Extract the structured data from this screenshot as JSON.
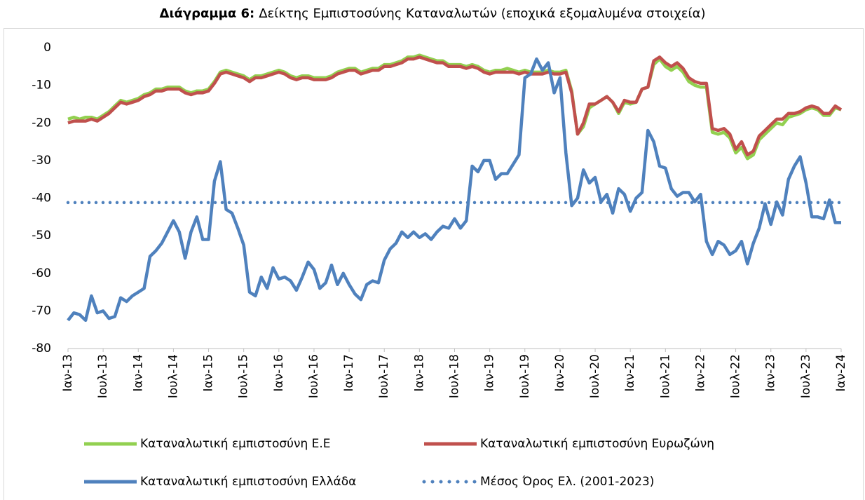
{
  "chart_data": {
    "type": "line",
    "title_label": "Διάγραμμα 6:",
    "title": "Δείκτης Εμπιστοσύνης Καταναλωτών (εποχικά εξομαλυμένα στοιχεία)",
    "categories": [
      "Ιαν-13",
      null,
      null,
      null,
      null,
      null,
      "Ιουλ-13",
      null,
      null,
      null,
      null,
      null,
      "Ιαν-14",
      null,
      null,
      null,
      null,
      null,
      "Ιουλ-14",
      null,
      null,
      null,
      null,
      null,
      "Ιαν-15",
      null,
      null,
      null,
      null,
      null,
      "Ιουλ-15",
      null,
      null,
      null,
      null,
      null,
      "Ιαν-16",
      null,
      null,
      null,
      null,
      null,
      "Ιουλ-16",
      null,
      null,
      null,
      null,
      null,
      "Ιαν-17",
      null,
      null,
      null,
      null,
      null,
      "Ιουλ-17",
      null,
      null,
      null,
      null,
      null,
      "Ιαν-18",
      null,
      null,
      null,
      null,
      null,
      "Ιουλ-18",
      null,
      null,
      null,
      null,
      null,
      "Ιαν-19",
      null,
      null,
      null,
      null,
      null,
      "Ιουλ-19",
      null,
      null,
      null,
      null,
      null,
      "Ιαν-20",
      null,
      null,
      null,
      null,
      null,
      "Ιουλ-20",
      null,
      null,
      null,
      null,
      null,
      "Ιαν-21",
      null,
      null,
      null,
      null,
      null,
      "Ιουλ-21",
      null,
      null,
      null,
      null,
      null,
      "Ιαν-22",
      null,
      null,
      null,
      null,
      null,
      "Ιουλ-22",
      null,
      null,
      null,
      null,
      null,
      "Ιαν-23",
      null,
      null,
      null,
      null,
      null,
      "Ιουλ-23",
      null,
      null,
      null,
      null,
      null,
      "Ιαν-24"
    ],
    "series": [
      {
        "name": "Καταναλωτική εμπιστοσύνη Ε.Ε",
        "color": "#92d050",
        "style": "solid",
        "values": [
          -19,
          -18.5,
          -19,
          -18.5,
          -18.5,
          -19,
          -18,
          -17,
          -15.5,
          -14,
          -14.5,
          -14,
          -13.5,
          -12.5,
          -12,
          -11,
          -11,
          -10.5,
          -10.5,
          -10.5,
          -11.5,
          -12,
          -11.5,
          -11.5,
          -11,
          -9,
          -6.5,
          -6,
          -6.5,
          -7,
          -7.5,
          -8.5,
          -7.5,
          -7.5,
          -7,
          -6.5,
          -6,
          -6.5,
          -7.5,
          -8,
          -7.5,
          -7.5,
          -8,
          -8,
          -8,
          -7.5,
          -6.5,
          -6,
          -5.5,
          -5.5,
          -6.5,
          -6,
          -5.5,
          -5.5,
          -4.5,
          -4.5,
          -4,
          -3.5,
          -2.5,
          -2.5,
          -2,
          -2.5,
          -3,
          -3.5,
          -3.5,
          -4.5,
          -4.5,
          -4.5,
          -5,
          -4.5,
          -5,
          -6,
          -6.5,
          -6,
          -6,
          -5.5,
          -6,
          -6.5,
          -6,
          -6.5,
          -6.5,
          -6.5,
          -6,
          -6.5,
          -6.5,
          -6,
          -11.5,
          -23,
          -21,
          -16,
          -15,
          -14,
          -13,
          -14.5,
          -17.5,
          -14.5,
          -15,
          -14.5,
          -11,
          -10.5,
          -4.5,
          -3,
          -5,
          -6,
          -5,
          -6.5,
          -9,
          -10,
          -10.5,
          -10.5,
          -22.5,
          -23,
          -22.5,
          -24,
          -28,
          -26.5,
          -29.5,
          -28.5,
          -24.5,
          -23,
          -21.5,
          -20,
          -20.5,
          -18.5,
          -18,
          -17.5,
          -16.5,
          -16,
          -16.5,
          -18,
          -18,
          -16,
          -16.5
        ]
      },
      {
        "name": "Καταναλωτική εμπιστοσύνη Ευρωζώνη",
        "color": "#c0504d",
        "style": "solid",
        "values": [
          -20,
          -19.5,
          -19.5,
          -19.5,
          -19,
          -19.5,
          -18.5,
          -17.5,
          -16,
          -14.5,
          -15,
          -14.5,
          -14,
          -13,
          -12.5,
          -11.5,
          -11.5,
          -11,
          -11,
          -11,
          -12,
          -12.5,
          -12,
          -12,
          -11.5,
          -9.5,
          -7,
          -6.5,
          -7,
          -7.5,
          -8,
          -9,
          -8,
          -8,
          -7.5,
          -7,
          -6.5,
          -7,
          -8,
          -8.5,
          -8,
          -8,
          -8.5,
          -8.5,
          -8.5,
          -8,
          -7,
          -6.5,
          -6,
          -6,
          -7,
          -6.5,
          -6,
          -6,
          -5,
          -5,
          -4.5,
          -4,
          -3,
          -3,
          -2.5,
          -3,
          -3.5,
          -4,
          -4,
          -5,
          -5,
          -5,
          -5.5,
          -5,
          -5.5,
          -6.5,
          -7,
          -6.5,
          -6.5,
          -6.5,
          -6.5,
          -7,
          -6.5,
          -7,
          -7,
          -7,
          -6.5,
          -7,
          -7,
          -6.5,
          -12,
          -23,
          -20,
          -15,
          -15,
          -14,
          -13,
          -14.5,
          -17,
          -14,
          -14.5,
          -14.5,
          -11,
          -10.5,
          -3.5,
          -2.5,
          -4,
          -5,
          -4,
          -5.5,
          -8,
          -9,
          -9.5,
          -9.5,
          -21.5,
          -22,
          -21.5,
          -23,
          -27,
          -25,
          -28.5,
          -27.5,
          -23.5,
          -22,
          -20.5,
          -19,
          -19,
          -17.5,
          -17.5,
          -17,
          -16,
          -15.5,
          -16,
          -17.5,
          -17.5,
          -15.5,
          -16.5
        ]
      },
      {
        "name": "Καταναλωτική εμπιστοσύνη Ελλάδα",
        "color": "#4f81bd",
        "style": "solid",
        "values": [
          -72.5,
          -70.5,
          -71,
          -72.5,
          -66,
          -70.5,
          -70,
          -72,
          -71.5,
          -66.5,
          -67.5,
          -66,
          -65,
          -64,
          -55.5,
          -54,
          -52,
          -49,
          -46,
          -49,
          -56,
          -49,
          -45,
          -51,
          -51,
          -35.5,
          -30.3,
          -43,
          -44,
          -48,
          -52.5,
          -65,
          -66,
          -61,
          -64,
          -58.5,
          -61.5,
          -61,
          -62,
          -64.5,
          -61,
          -57,
          -59,
          -64,
          -62.5,
          -57.8,
          -63,
          -60,
          -63,
          -65.5,
          -67,
          -63,
          -62,
          -62.5,
          -56.5,
          -53.5,
          -52,
          -49,
          -50.5,
          -49,
          -50.5,
          -49.5,
          -51,
          -49,
          -47.5,
          -48,
          -45.5,
          -48,
          -46,
          -31.5,
          -33,
          -30,
          -30,
          -35,
          -33.5,
          -33.5,
          -31,
          -28.5,
          -8,
          -7,
          -3,
          -6,
          -4,
          -12,
          -8,
          -28,
          -42,
          -40,
          -32.5,
          -36,
          -34.5,
          -41,
          -39,
          -44,
          -37.5,
          -39,
          -43.5,
          -40,
          -38.5,
          -22,
          -25,
          -31.5,
          -32,
          -37.5,
          -39.5,
          -38.5,
          -38.5,
          -41,
          -39,
          -51.5,
          -55,
          -51.5,
          -52.5,
          -55,
          -54,
          -51.5,
          -57.5,
          -52,
          -48,
          -41.5,
          -47,
          -41,
          -44.5,
          -35,
          -31.5,
          -29,
          -36,
          -45,
          -45,
          -45.5,
          -40.5,
          -46.5,
          -46.5
        ]
      },
      {
        "name": "Μέσος Όρος Ελ. (2001-2023)",
        "color": "#4f81bd",
        "style": "dotted",
        "values": [
          -41.2,
          -41.2,
          -41.2,
          -41.2,
          -41.2,
          -41.2,
          -41.2,
          -41.2,
          -41.2,
          -41.2,
          -41.2,
          -41.2,
          -41.2,
          -41.2,
          -41.2,
          -41.2,
          -41.2,
          -41.2,
          -41.2,
          -41.2,
          -41.2,
          -41.2,
          -41.2,
          -41.2,
          -41.2,
          -41.2,
          -41.2,
          -41.2,
          -41.2,
          -41.2,
          -41.2,
          -41.2,
          -41.2,
          -41.2,
          -41.2,
          -41.2,
          -41.2,
          -41.2,
          -41.2,
          -41.2,
          -41.2,
          -41.2,
          -41.2,
          -41.2,
          -41.2,
          -41.2,
          -41.2,
          -41.2,
          -41.2,
          -41.2,
          -41.2,
          -41.2,
          -41.2,
          -41.2,
          -41.2,
          -41.2,
          -41.2,
          -41.2,
          -41.2,
          -41.2,
          -41.2,
          -41.2,
          -41.2,
          -41.2,
          -41.2,
          -41.2,
          -41.2,
          -41.2,
          -41.2,
          -41.2,
          -41.2,
          -41.2,
          -41.2,
          -41.2,
          -41.2,
          -41.2,
          -41.2,
          -41.2,
          -41.2,
          -41.2,
          -41.2,
          -41.2,
          -41.2,
          -41.2,
          -41.2,
          -41.2,
          -41.2,
          -41.2,
          -41.2,
          -41.2,
          -41.2,
          -41.2,
          -41.2,
          -41.2,
          -41.2,
          -41.2,
          -41.2,
          -41.2,
          -41.2,
          -41.2,
          -41.2,
          -41.2,
          -41.2,
          -41.2,
          -41.2,
          -41.2,
          -41.2,
          -41.2,
          -41.2,
          -41.2,
          -41.2,
          -41.2,
          -41.2,
          -41.2,
          -41.2,
          -41.2,
          -41.2,
          -41.2,
          -41.2,
          -41.2,
          -41.2,
          -41.2,
          -41.2,
          -41.2,
          -41.2,
          -41.2,
          -41.2,
          -41.2,
          -41.2,
          -41.2,
          -41.2,
          -41.2,
          -41.2
        ]
      }
    ],
    "ylim": [
      -80,
      0
    ],
    "yticks": [
      0,
      -10,
      -20,
      -30,
      -40,
      -50,
      -60,
      -70,
      -80
    ],
    "grid": false,
    "legend": "bottom"
  }
}
